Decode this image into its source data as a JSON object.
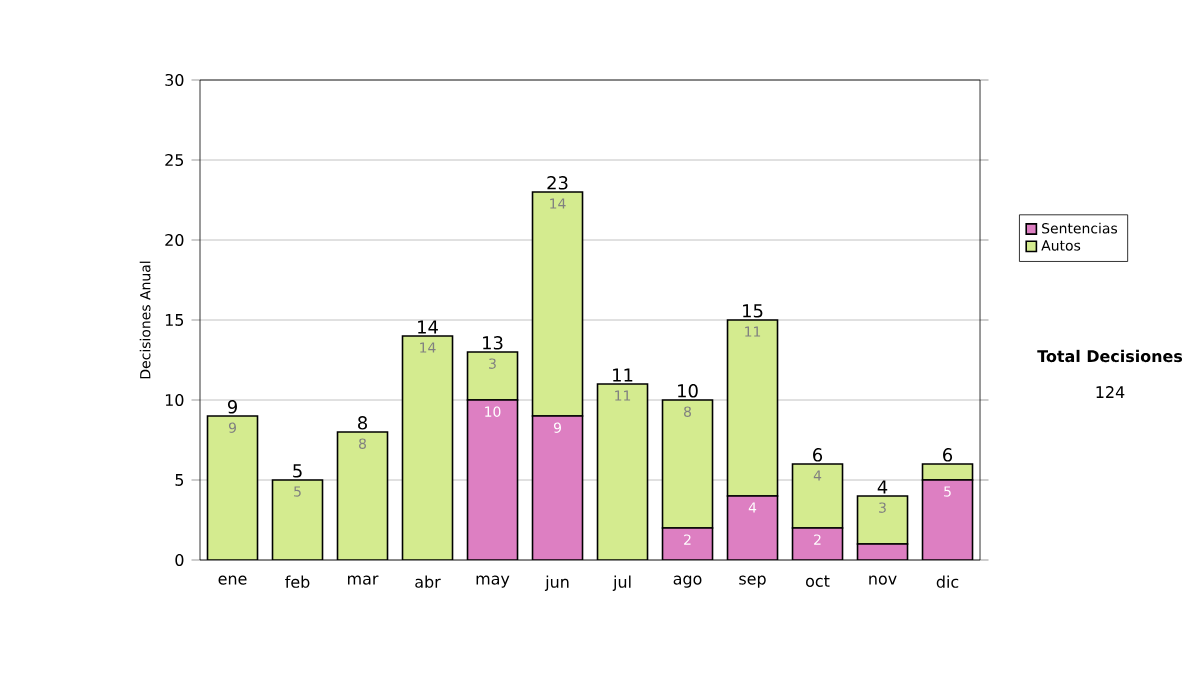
{
  "chart_data": {
    "type": "bar",
    "stacked": true,
    "ylabel": "Decisiones Anual",
    "categories": [
      "ene",
      "feb",
      "mar",
      "abr",
      "may",
      "jun",
      "jul",
      "ago",
      "sep",
      "oct",
      "nov",
      "dic"
    ],
    "series": [
      {
        "name": "Sentencias",
        "color": "#dd7fc2",
        "values": [
          0,
          0,
          0,
          0,
          10,
          9,
          0,
          2,
          4,
          2,
          1,
          5
        ],
        "value_labels": [
          null,
          null,
          null,
          null,
          "10",
          "9",
          null,
          "2",
          "4",
          "2",
          null,
          "5"
        ]
      },
      {
        "name": "Autos",
        "color": "#d4eb8f",
        "values": [
          9,
          5,
          8,
          14,
          3,
          14,
          11,
          8,
          11,
          4,
          3,
          1
        ],
        "value_labels": [
          "9",
          "5",
          "8",
          "14",
          "3",
          "14",
          "11",
          "8",
          "11",
          "4",
          "3",
          null
        ]
      }
    ],
    "totals": [
      "9",
      "5",
      "8",
      "14",
      "13",
      "23",
      "11",
      "10",
      "15",
      "6",
      "4",
      "6"
    ],
    "ylim": [
      0,
      30
    ],
    "yticks": [
      0,
      5,
      10,
      15,
      20,
      25,
      30
    ],
    "grid": "y",
    "legend": "right",
    "annotations": [
      "Total Decisiones",
      "124"
    ]
  }
}
